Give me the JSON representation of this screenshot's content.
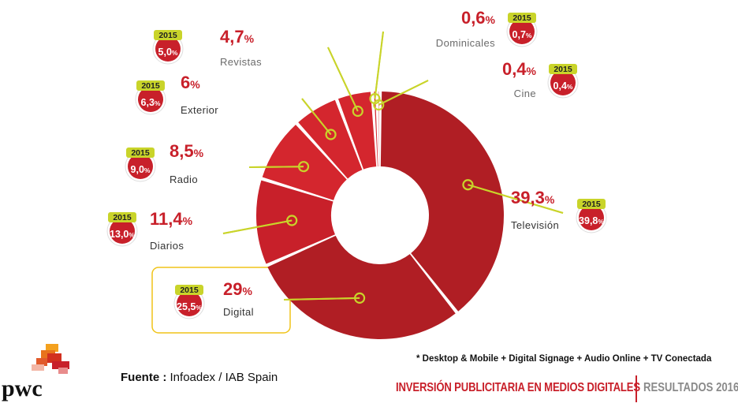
{
  "chart_data": {
    "type": "pie",
    "title": "",
    "variant": "donut",
    "slices": [
      {
        "label": "Televisión",
        "value": 39.3,
        "value_text": "39,3",
        "prev_value_text": "39,8",
        "color": "#b01e24"
      },
      {
        "label": "Digital",
        "value": 29,
        "value_text": "29",
        "prev_value_text": "25,5",
        "color": "#b01e24"
      },
      {
        "label": "Diarios",
        "value": 11.4,
        "value_text": "11,4",
        "prev_value_text": "13,0",
        "color": "#c8202a"
      },
      {
        "label": "Radio",
        "value": 8.5,
        "value_text": "8,5",
        "prev_value_text": "9,0",
        "color": "#d4262e"
      },
      {
        "label": "Exterior",
        "value": 6,
        "value_text": "6",
        "prev_value_text": "6,3",
        "color": "#d4262e"
      },
      {
        "label": "Revistas",
        "value": 4.7,
        "value_text": "4,7",
        "prev_value_text": "5,0",
        "color": "#d4262e"
      },
      {
        "label": "Dominicales",
        "value": 0.6,
        "value_text": "0,6",
        "prev_value_text": "0,7",
        "color": "#d4262e"
      },
      {
        "label": "Cine",
        "value": 0.4,
        "value_text": "0,4",
        "prev_value_text": "0,4",
        "color": "#d4262e"
      }
    ],
    "percent_sign": "%",
    "prev_year_label": "2015",
    "highlighted_slice": "Digital"
  },
  "colors": {
    "accent_red": "#c8202a",
    "leader_line": "#c9d42a",
    "badge_tab": "#c9d42a",
    "highlight_box": "#f0c419"
  },
  "footer": {
    "source_label": "Fuente :",
    "source_value": "Infoadex / IAB Spain",
    "footnote": "* Desktop & Mobile + Digital Signage + Audio Online + TV Conectada",
    "title": "INVERSIÓN PUBLICITARIA EN MEDIOS DIGITALES",
    "subtitle": "RESULTADOS 2016",
    "logo_text": "pwc"
  }
}
